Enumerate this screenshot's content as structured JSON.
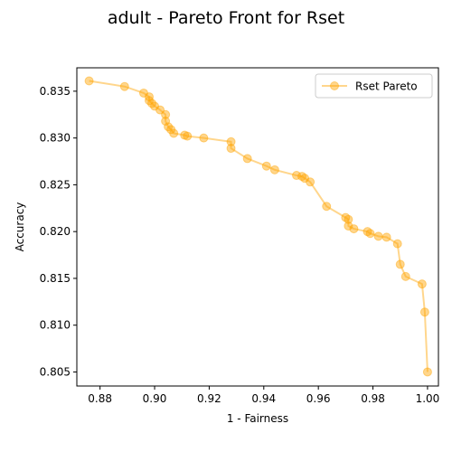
{
  "chart_data": {
    "type": "line",
    "title": "adult - Pareto Front for Rset",
    "xlabel": "1 - Fairness",
    "ylabel": "Accuracy",
    "xlim": [
      0.8715,
      1.004
    ],
    "ylim": [
      0.8035,
      0.8375
    ],
    "xticks": [
      "0.88",
      "0.90",
      "0.92",
      "0.94",
      "0.96",
      "0.98",
      "1.00"
    ],
    "yticks": [
      "0.805",
      "0.810",
      "0.815",
      "0.820",
      "0.825",
      "0.830",
      "0.835"
    ],
    "grid": false,
    "legend_position": "top-right",
    "series": [
      {
        "name": "Rset Pareto",
        "color": "#ffa500",
        "x": [
          0.876,
          0.889,
          0.896,
          0.898,
          0.898,
          0.899,
          0.9,
          0.902,
          0.904,
          0.904,
          0.905,
          0.906,
          0.907,
          0.911,
          0.912,
          0.918,
          0.928,
          0.928,
          0.934,
          0.941,
          0.944,
          0.952,
          0.954,
          0.955,
          0.957,
          0.963,
          0.97,
          0.971,
          0.971,
          0.973,
          0.978,
          0.979,
          0.982,
          0.985,
          0.989,
          0.99,
          0.992,
          0.998,
          0.999,
          1.0
        ],
        "y": [
          0.8361,
          0.8355,
          0.8348,
          0.8344,
          0.834,
          0.8337,
          0.8334,
          0.833,
          0.8325,
          0.8318,
          0.8312,
          0.8309,
          0.8305,
          0.8303,
          0.8302,
          0.83,
          0.8296,
          0.8289,
          0.8278,
          0.827,
          0.8266,
          0.826,
          0.8259,
          0.8257,
          0.8253,
          0.8227,
          0.8215,
          0.8213,
          0.8206,
          0.8203,
          0.82,
          0.8198,
          0.8195,
          0.8194,
          0.8187,
          0.8165,
          0.8152,
          0.8144,
          0.8114,
          0.805
        ]
      }
    ]
  }
}
